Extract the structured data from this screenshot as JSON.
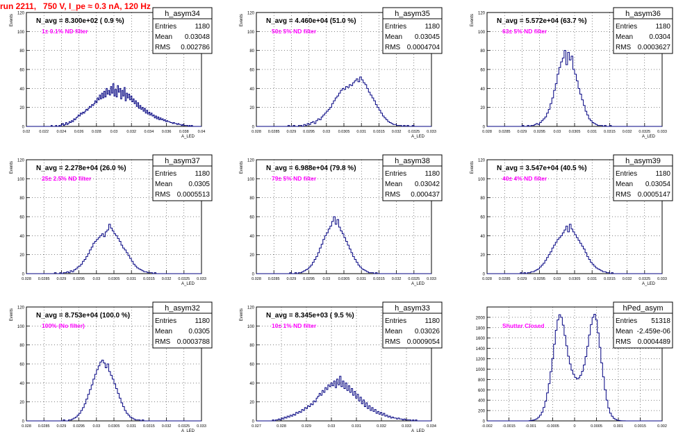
{
  "run_title": "run 2211,   750 V, I_pe ≈ 0.3 nA, 120 Hz",
  "stat_labels": {
    "entries": "Entries",
    "mean": "Mean",
    "rms": "RMS"
  },
  "chart_data": [
    {
      "type": "histogram",
      "name": "h_asym34",
      "n_avg": "N_avg = 8.300e+02 ( 0.9 %)",
      "filter": "1± 0.1% ND filter",
      "ylabel": "Events",
      "xlabel": "A_LED",
      "entries": "1180",
      "mean": "0.03048",
      "rms": "0.002786",
      "xlim": [
        0.02,
        0.04
      ],
      "ylim": [
        0,
        120
      ],
      "xticks": [
        "0.02",
        "0.022",
        "0.024",
        "0.026",
        "0.028",
        "0.03",
        "0.032",
        "0.034",
        "0.036",
        "0.038",
        "0.04"
      ],
      "yticks": [
        "0",
        "20",
        "40",
        "60",
        "80",
        "100",
        "120"
      ],
      "values": [
        0,
        0,
        0,
        0,
        0,
        0,
        0,
        0,
        0,
        0,
        0,
        0,
        0,
        0,
        0,
        0,
        0,
        0,
        0,
        0,
        0,
        0,
        1,
        0,
        0,
        0,
        1,
        0,
        0,
        1,
        0,
        2,
        3,
        1,
        2,
        4,
        2,
        3,
        5,
        4,
        6,
        5,
        8,
        7,
        9,
        10,
        12,
        11,
        14,
        13,
        15,
        14,
        16,
        18,
        17,
        19,
        21,
        20,
        23,
        22,
        24,
        27,
        25,
        30,
        28,
        33,
        29,
        35,
        30,
        37,
        31,
        40,
        34,
        38,
        33,
        42,
        35,
        45,
        32,
        39,
        31,
        43,
        36,
        40,
        29,
        38,
        32,
        41,
        27,
        35,
        30,
        34,
        28,
        32,
        26,
        29,
        24,
        27,
        21,
        25,
        19,
        22,
        18,
        20,
        16,
        19,
        14,
        17,
        13,
        15,
        12,
        14,
        11,
        12,
        9,
        11,
        8,
        10,
        7,
        9,
        7,
        8,
        6,
        7,
        5,
        6,
        5,
        5,
        4,
        4,
        3,
        4,
        3,
        3,
        2,
        3,
        2,
        2,
        1,
        2,
        1,
        1,
        1,
        1,
        0,
        1,
        0,
        1,
        0,
        0,
        0,
        0,
        0,
        0,
        0,
        0
      ]
    },
    {
      "type": "histogram",
      "name": "h_asym35",
      "n_avg": "N_avg = 4.460e+04 (51.0 %)",
      "filter": "50± 5% ND filter",
      "ylabel": "Events",
      "xlabel": "A_LED",
      "entries": "1180",
      "mean": "0.03045",
      "rms": "0.0004704",
      "xlim": [
        0.028,
        0.033
      ],
      "ylim": [
        0,
        120
      ],
      "xticks": [
        "0.028",
        "0.0285",
        "0.029",
        "0.0295",
        "0.03",
        "0.0305",
        "0.031",
        "0.0315",
        "0.032",
        "0.0325",
        "0.033"
      ],
      "yticks": [
        "0",
        "20",
        "40",
        "60",
        "80",
        "100",
        "120"
      ],
      "values": [
        0,
        0,
        0,
        0,
        0,
        0,
        0,
        0,
        0,
        0,
        0,
        0,
        0,
        0,
        0,
        0,
        0,
        0,
        1,
        0,
        0,
        1,
        0,
        0,
        1,
        1,
        0,
        2,
        1,
        3,
        2,
        4,
        5,
        3,
        6,
        8,
        7,
        10,
        12,
        14,
        16,
        18,
        20,
        24,
        27,
        30,
        32,
        35,
        38,
        40,
        39,
        42,
        41,
        44,
        43,
        46,
        48,
        50,
        47,
        52,
        49,
        46,
        44,
        40,
        36,
        33,
        30,
        27,
        23,
        20,
        17,
        14,
        11,
        9,
        7,
        5,
        4,
        3,
        2,
        2,
        1,
        1,
        1,
        0,
        1,
        0,
        1,
        0,
        0,
        1,
        0,
        0,
        0,
        0,
        0,
        0,
        0,
        0,
        0,
        0
      ]
    },
    {
      "type": "histogram",
      "name": "h_asym36",
      "n_avg": "N_avg = 5.572e+04 (63.7 %)",
      "filter": "63± 5% ND filter",
      "ylabel": "Events",
      "xlabel": "A_LED",
      "entries": "1180",
      "mean": "0.0304",
      "rms": "0.0003627",
      "xlim": [
        0.028,
        0.033
      ],
      "ylim": [
        0,
        120
      ],
      "xticks": [
        "0.028",
        "0.0285",
        "0.029",
        "0.0295",
        "0.03",
        "0.0305",
        "0.031",
        "0.0315",
        "0.032",
        "0.0325",
        "0.033"
      ],
      "yticks": [
        "0",
        "20",
        "40",
        "60",
        "80",
        "100",
        "120"
      ],
      "values": [
        0,
        0,
        0,
        0,
        0,
        0,
        0,
        0,
        0,
        0,
        0,
        0,
        0,
        0,
        0,
        0,
        0,
        0,
        0,
        0,
        1,
        0,
        0,
        1,
        0,
        1,
        1,
        2,
        3,
        2,
        4,
        6,
        8,
        10,
        14,
        18,
        24,
        30,
        38,
        45,
        55,
        62,
        68,
        72,
        80,
        65,
        78,
        70,
        74,
        60,
        55,
        48,
        40,
        34,
        28,
        22,
        16,
        12,
        8,
        6,
        4,
        3,
        2,
        1,
        1,
        1,
        0,
        1,
        0,
        0,
        1,
        0,
        0,
        0,
        0,
        0,
        0,
        0,
        0,
        0,
        0,
        0,
        0,
        0,
        0,
        0,
        0,
        0,
        0,
        0,
        0,
        0,
        0,
        0,
        0,
        0,
        0,
        0,
        0,
        0
      ]
    },
    {
      "type": "histogram",
      "name": "h_asym37",
      "n_avg": "N_avg = 2.278e+04 (26.0 %)",
      "filter": "25± 2.5% ND filter",
      "ylabel": "Events",
      "xlabel": "A_LED",
      "entries": "1180",
      "mean": "0.0305",
      "rms": "0.0005513",
      "xlim": [
        0.028,
        0.033
      ],
      "ylim": [
        0,
        120
      ],
      "xticks": [
        "0.028",
        "0.0285",
        "0.029",
        "0.0295",
        "0.03",
        "0.0305",
        "0.031",
        "0.0315",
        "0.032",
        "0.0325",
        "0.033"
      ],
      "yticks": [
        "0",
        "20",
        "40",
        "60",
        "80",
        "100",
        "120"
      ],
      "values": [
        0,
        0,
        0,
        0,
        0,
        0,
        0,
        0,
        0,
        0,
        0,
        0,
        0,
        0,
        0,
        0,
        1,
        0,
        0,
        1,
        0,
        1,
        1,
        2,
        1,
        3,
        2,
        4,
        5,
        7,
        8,
        10,
        13,
        15,
        18,
        21,
        25,
        28,
        32,
        34,
        36,
        38,
        40,
        42,
        39,
        44,
        46,
        52,
        48,
        45,
        42,
        40,
        37,
        34,
        30,
        27,
        25,
        22,
        19,
        16,
        13,
        10,
        8,
        6,
        5,
        4,
        3,
        2,
        2,
        1,
        1,
        1,
        0,
        1,
        0,
        0,
        0,
        0,
        0,
        0,
        0,
        0,
        0,
        0,
        0,
        0,
        0,
        0,
        0,
        0,
        0,
        0,
        0,
        0,
        0,
        0,
        0,
        0,
        0,
        0
      ]
    },
    {
      "type": "histogram",
      "name": "h_asym38",
      "n_avg": "N_avg = 6.988e+04 (79.8 %)",
      "filter": "79± 5% ND filter",
      "ylabel": "Events",
      "xlabel": "A_LED",
      "entries": "1180",
      "mean": "0.03042",
      "rms": "0.000437",
      "xlim": [
        0.028,
        0.033
      ],
      "ylim": [
        0,
        120
      ],
      "xticks": [
        "0.028",
        "0.0285",
        "0.029",
        "0.0295",
        "0.03",
        "0.0305",
        "0.031",
        "0.0315",
        "0.032",
        "0.0325",
        "0.033"
      ],
      "yticks": [
        "0",
        "20",
        "40",
        "60",
        "80",
        "100",
        "120"
      ],
      "values": [
        0,
        0,
        0,
        0,
        0,
        0,
        0,
        0,
        0,
        0,
        0,
        0,
        0,
        0,
        0,
        0,
        0,
        0,
        0,
        1,
        0,
        0,
        1,
        0,
        1,
        1,
        2,
        3,
        4,
        5,
        7,
        9,
        12,
        15,
        18,
        22,
        27,
        31,
        36,
        40,
        43,
        47,
        50,
        55,
        60,
        52,
        57,
        49,
        45,
        42,
        38,
        34,
        30,
        26,
        22,
        18,
        15,
        12,
        9,
        7,
        5,
        4,
        3,
        2,
        1,
        1,
        1,
        0,
        1,
        0,
        0,
        0,
        0,
        0,
        0,
        0,
        0,
        0,
        0,
        0,
        0,
        0,
        0,
        0,
        0,
        0,
        0,
        0,
        0,
        0,
        0,
        0,
        0,
        0,
        0,
        0,
        0,
        0,
        0,
        0
      ]
    },
    {
      "type": "histogram",
      "name": "h_asym39",
      "n_avg": "N_avg = 3.547e+04 (40.5 %)",
      "filter": "40± 4% ND filter",
      "ylabel": "Events",
      "xlabel": "A_LED",
      "entries": "1180",
      "mean": "0.03054",
      "rms": "0.0005147",
      "xlim": [
        0.028,
        0.033
      ],
      "ylim": [
        0,
        120
      ],
      "xticks": [
        "0.028",
        "0.0285",
        "0.029",
        "0.0295",
        "0.03",
        "0.0305",
        "0.031",
        "0.0315",
        "0.032",
        "0.0325",
        "0.033"
      ],
      "yticks": [
        "0",
        "20",
        "40",
        "60",
        "80",
        "100",
        "120"
      ],
      "values": [
        0,
        0,
        0,
        0,
        0,
        0,
        0,
        0,
        0,
        0,
        0,
        0,
        0,
        0,
        0,
        0,
        0,
        0,
        0,
        1,
        0,
        1,
        0,
        1,
        1,
        2,
        2,
        3,
        4,
        5,
        7,
        9,
        11,
        14,
        17,
        20,
        23,
        27,
        30,
        33,
        36,
        38,
        40,
        43,
        46,
        50,
        44,
        52,
        47,
        44,
        41,
        38,
        35,
        32,
        29,
        26,
        22,
        18,
        15,
        12,
        10,
        8,
        6,
        5,
        4,
        3,
        2,
        2,
        1,
        1,
        0,
        1,
        0,
        0,
        0,
        0,
        0,
        0,
        0,
        0,
        0,
        0,
        0,
        0,
        0,
        0,
        0,
        0,
        0,
        0,
        0,
        0,
        0,
        0,
        0,
        0,
        0,
        0,
        0,
        0
      ]
    },
    {
      "type": "histogram",
      "name": "h_asym32",
      "n_avg": "N_avg = 8.753e+04 (100.0 %)",
      "filter": "100% (No filter)",
      "ylabel": "Events",
      "xlabel": "A_LED",
      "entries": "1180",
      "mean": "0.0305",
      "rms": "0.0003788",
      "xlim": [
        0.028,
        0.033
      ],
      "ylim": [
        0,
        120
      ],
      "xticks": [
        "0.028",
        "0.0285",
        "0.029",
        "0.0295",
        "0.03",
        "0.0305",
        "0.031",
        "0.0315",
        "0.032",
        "0.0325",
        "0.033"
      ],
      "yticks": [
        "0",
        "20",
        "40",
        "60",
        "80",
        "100",
        "120"
      ],
      "values": [
        0,
        0,
        0,
        0,
        0,
        0,
        0,
        0,
        0,
        0,
        0,
        0,
        0,
        0,
        0,
        0,
        0,
        0,
        0,
        0,
        0,
        1,
        0,
        0,
        1,
        1,
        2,
        3,
        4,
        6,
        8,
        11,
        14,
        18,
        23,
        28,
        33,
        38,
        44,
        49,
        54,
        58,
        62,
        64,
        61,
        56,
        60,
        52,
        48,
        44,
        39,
        34,
        29,
        24,
        19,
        15,
        11,
        8,
        6,
        4,
        3,
        2,
        1,
        1,
        1,
        0,
        1,
        0,
        0,
        0,
        0,
        0,
        0,
        0,
        0,
        0,
        0,
        0,
        0,
        0,
        0,
        0,
        0,
        0,
        0,
        0,
        0,
        0,
        0,
        0,
        0,
        0,
        0,
        0,
        0,
        0,
        0,
        0,
        0,
        0
      ]
    },
    {
      "type": "histogram",
      "name": "h_asym33",
      "n_avg": "N_avg = 8.345e+03 ( 9.5 %)",
      "filter": "10± 1% ND filter",
      "ylabel": "Events",
      "xlabel": "A_LED",
      "entries": "1180",
      "mean": "0.03026",
      "rms": "0.0009054",
      "xlim": [
        0.027,
        0.034
      ],
      "ylim": [
        0,
        120
      ],
      "xticks": [
        "0.027",
        "0.028",
        "0.029",
        "0.03",
        "0.031",
        "0.032",
        "0.033",
        "0.034"
      ],
      "yticks": [
        "0",
        "20",
        "40",
        "60",
        "80",
        "100",
        "120"
      ],
      "values": [
        0,
        0,
        0,
        0,
        0,
        0,
        0,
        0,
        0,
        0,
        0,
        1,
        0,
        1,
        1,
        2,
        1,
        3,
        2,
        4,
        3,
        5,
        4,
        6,
        5,
        7,
        6,
        9,
        8,
        10,
        9,
        12,
        11,
        14,
        13,
        16,
        15,
        18,
        17,
        21,
        20,
        24,
        26,
        29,
        27,
        32,
        30,
        35,
        33,
        38,
        36,
        40,
        37,
        42,
        35,
        44,
        38,
        47,
        36,
        42,
        34,
        40,
        32,
        37,
        30,
        34,
        27,
        31,
        24,
        28,
        21,
        25,
        18,
        22,
        15,
        19,
        13,
        16,
        11,
        14,
        10,
        12,
        8,
        10,
        7,
        9,
        6,
        8,
        5,
        6,
        4,
        5,
        3,
        4,
        3,
        3,
        2,
        3,
        2,
        2,
        1,
        2,
        1,
        1,
        1,
        1,
        0,
        1,
        0,
        1,
        0,
        0,
        0,
        0,
        0,
        0,
        0,
        0,
        0,
        0
      ]
    },
    {
      "type": "histogram",
      "name": "hPed_asym",
      "n_avg": "",
      "filter": "Shutter Closed",
      "ylabel": "",
      "xlabel": "",
      "entries": "51318",
      "mean": "-2.459e-06",
      "rms": "0.0004489",
      "xlim": [
        -0.002,
        0.002
      ],
      "ylim": [
        0,
        2200
      ],
      "xticks": [
        "-0.002",
        "-0.0015",
        "-0.001",
        "-0.0005",
        "0",
        "0.0005",
        "0.001",
        "0.0015",
        "0.002"
      ],
      "yticks": [
        "0",
        "200",
        "400",
        "600",
        "800",
        "1000",
        "1200",
        "1400",
        "1600",
        "1800",
        "2000"
      ],
      "values": [
        0,
        0,
        0,
        0,
        0,
        0,
        0,
        0,
        0,
        0,
        0,
        0,
        0,
        0,
        0,
        0,
        0,
        0,
        0,
        0,
        0,
        0,
        0,
        0,
        5,
        8,
        15,
        25,
        40,
        70,
        110,
        170,
        260,
        380,
        540,
        720,
        950,
        1200,
        1480,
        1750,
        1950,
        2050,
        2000,
        1850,
        1650,
        1450,
        1250,
        1100,
        980,
        900,
        840,
        810,
        830,
        880,
        960,
        1080,
        1240,
        1440,
        1660,
        1860,
        2000,
        2060,
        1950,
        1700,
        1420,
        1120,
        850,
        600,
        400,
        250,
        150,
        90,
        50,
        28,
        15,
        8,
        4,
        2,
        1,
        0,
        0,
        0,
        0,
        0,
        0,
        0,
        0,
        0,
        0,
        0,
        0,
        0,
        0,
        0,
        0,
        0,
        0,
        0,
        0,
        0
      ]
    }
  ]
}
